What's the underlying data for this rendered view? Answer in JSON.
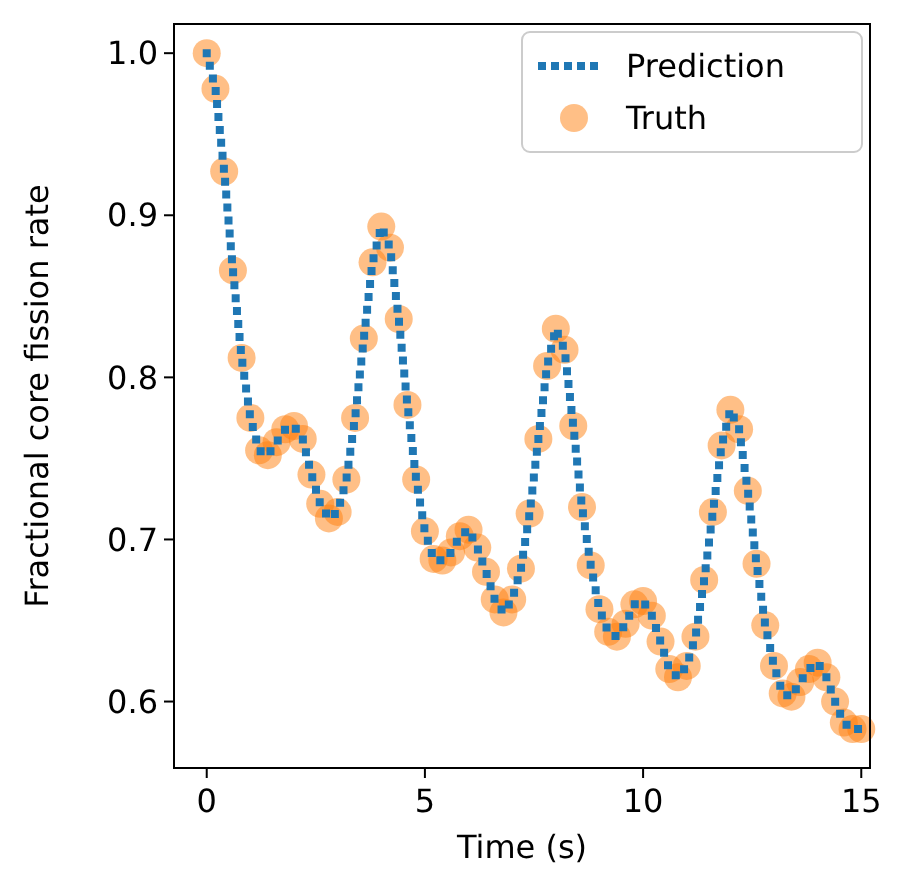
{
  "chart_data": {
    "type": "line",
    "xlabel": "Time (s)",
    "ylabel": "Fractional core fission rate",
    "x": [
      0,
      0.2,
      0.4,
      0.6,
      0.8,
      1,
      1.2,
      1.4,
      1.6,
      1.8,
      2,
      2.2,
      2.4,
      2.6,
      2.8,
      3,
      3.2,
      3.4,
      3.6,
      3.8,
      4,
      4.2,
      4.4,
      4.6,
      4.8,
      5,
      5.2,
      5.4,
      5.6,
      5.8,
      6,
      6.2,
      6.4,
      6.6,
      6.8,
      7,
      7.2,
      7.4,
      7.6,
      7.8,
      8,
      8.2,
      8.4,
      8.6,
      8.8,
      9,
      9.2,
      9.4,
      9.6,
      9.8,
      10,
      10.2,
      10.4,
      10.6,
      10.8,
      11,
      11.2,
      11.4,
      11.6,
      11.8,
      12,
      12.2,
      12.4,
      12.6,
      12.8,
      13,
      13.2,
      13.4,
      13.6,
      13.8,
      14,
      14.2,
      14.4,
      14.6,
      14.8,
      15
    ],
    "series": [
      {
        "name": "Prediction",
        "line_style": "dotted",
        "marker": "none",
        "color": "#1f77b4",
        "values": [
          1.0,
          0.978,
          0.927,
          0.866,
          0.812,
          0.775,
          0.755,
          0.752,
          0.76,
          0.768,
          0.77,
          0.762,
          0.74,
          0.722,
          0.713,
          0.717,
          0.737,
          0.775,
          0.824,
          0.871,
          0.893,
          0.88,
          0.836,
          0.783,
          0.737,
          0.705,
          0.688,
          0.687,
          0.692,
          0.702,
          0.706,
          0.695,
          0.68,
          0.663,
          0.655,
          0.663,
          0.682,
          0.716,
          0.762,
          0.807,
          0.83,
          0.817,
          0.77,
          0.72,
          0.684,
          0.657,
          0.643,
          0.64,
          0.648,
          0.66,
          0.662,
          0.653,
          0.637,
          0.62,
          0.615,
          0.622,
          0.64,
          0.675,
          0.717,
          0.758,
          0.78,
          0.768,
          0.73,
          0.685,
          0.647,
          0.622,
          0.605,
          0.603,
          0.612,
          0.62,
          0.624,
          0.615,
          0.6,
          0.587,
          0.583,
          0.583
        ]
      },
      {
        "name": "Truth",
        "type": "scatter",
        "marker": "circle",
        "color": "#ff7f0e",
        "values": [
          1.0,
          0.978,
          0.927,
          0.866,
          0.812,
          0.775,
          0.755,
          0.752,
          0.76,
          0.768,
          0.77,
          0.762,
          0.74,
          0.722,
          0.713,
          0.717,
          0.737,
          0.775,
          0.824,
          0.871,
          0.893,
          0.88,
          0.836,
          0.783,
          0.737,
          0.705,
          0.688,
          0.687,
          0.692,
          0.702,
          0.706,
          0.695,
          0.68,
          0.663,
          0.655,
          0.663,
          0.682,
          0.716,
          0.762,
          0.807,
          0.83,
          0.817,
          0.77,
          0.72,
          0.684,
          0.657,
          0.643,
          0.64,
          0.648,
          0.66,
          0.662,
          0.653,
          0.637,
          0.62,
          0.615,
          0.622,
          0.64,
          0.675,
          0.717,
          0.758,
          0.78,
          0.768,
          0.73,
          0.685,
          0.647,
          0.622,
          0.605,
          0.603,
          0.612,
          0.62,
          0.624,
          0.615,
          0.6,
          0.587,
          0.583,
          0.583
        ]
      }
    ],
    "xlim": [
      -0.75,
      15.2
    ],
    "ylim": [
      0.559,
      1.018
    ],
    "xticks": [
      0,
      5,
      10,
      15
    ],
    "yticks": [
      {
        "value": 0.6,
        "label": "0.6"
      },
      {
        "value": 0.7,
        "label": "0.7"
      },
      {
        "value": 0.8,
        "label": "0.8"
      },
      {
        "value": 0.9,
        "label": "0.9"
      },
      {
        "value": 1.0,
        "label": "1.0"
      }
    ],
    "legend": "top right"
  }
}
